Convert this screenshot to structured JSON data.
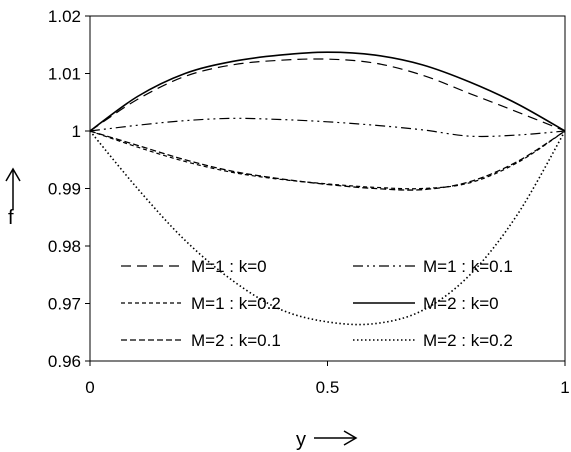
{
  "chart_data": {
    "type": "line",
    "title": "",
    "xlabel": "y",
    "ylabel": "f",
    "xlim": [
      0,
      1
    ],
    "ylim": [
      0.96,
      1.02
    ],
    "x_ticks": [
      0,
      0.5,
      1
    ],
    "x_tick_labels": [
      "0",
      "0.5",
      "1"
    ],
    "y_ticks": [
      0.96,
      0.97,
      0.98,
      0.99,
      1.0,
      1.01,
      1.02
    ],
    "y_tick_labels": [
      "0.96",
      "0.97",
      "0.98",
      "0.99",
      "1",
      "1.01",
      "1.02"
    ],
    "grid": false,
    "legend_position": "bottom-inside",
    "x": [
      0,
      0.1,
      0.2,
      0.3,
      0.4,
      0.5,
      0.6,
      0.7,
      0.8,
      0.9,
      1.0
    ],
    "series": [
      {
        "name": "M=1 : k=0",
        "dash": "10,6",
        "width": 1.2,
        "values": [
          1.0,
          1.0055,
          1.0095,
          1.0115,
          1.0123,
          1.0125,
          1.0118,
          1.0097,
          1.0065,
          1.0033,
          1.0
        ]
      },
      {
        "name": "M=1 : k=0.1",
        "dash": "10,4,2,4,2,4",
        "width": 1.2,
        "values": [
          1.0,
          1.001,
          1.0018,
          1.0022,
          1.002,
          1.0016,
          1.001,
          1.0002,
          0.9991,
          0.9993,
          1.0
        ]
      },
      {
        "name": "M=1 : k=0.2",
        "dash": "4,3",
        "width": 1.2,
        "values": [
          1.0,
          0.9972,
          0.9947,
          0.9928,
          0.9916,
          0.9908,
          0.9902,
          0.99,
          0.991,
          0.9945,
          1.0
        ]
      },
      {
        "name": "M=2 : k=0",
        "dash": "",
        "width": 1.6,
        "values": [
          1.0,
          1.006,
          1.01,
          1.0121,
          1.0132,
          1.0137,
          1.0132,
          1.0115,
          1.0085,
          1.0047,
          1.0
        ]
      },
      {
        "name": "M=2 : k=0.1",
        "dash": "6,3",
        "width": 1.3,
        "values": [
          1.0,
          0.9975,
          0.995,
          0.993,
          0.9917,
          0.9907,
          0.99,
          0.9898,
          0.9912,
          0.9947,
          1.0
        ]
      },
      {
        "name": "M=2 : k=0.2",
        "dash": "1.5,2.5",
        "width": 1.6,
        "values": [
          1.0,
          0.99,
          0.981,
          0.974,
          0.969,
          0.9668,
          0.9665,
          0.9688,
          0.975,
          0.9855,
          1.0
        ]
      }
    ]
  }
}
